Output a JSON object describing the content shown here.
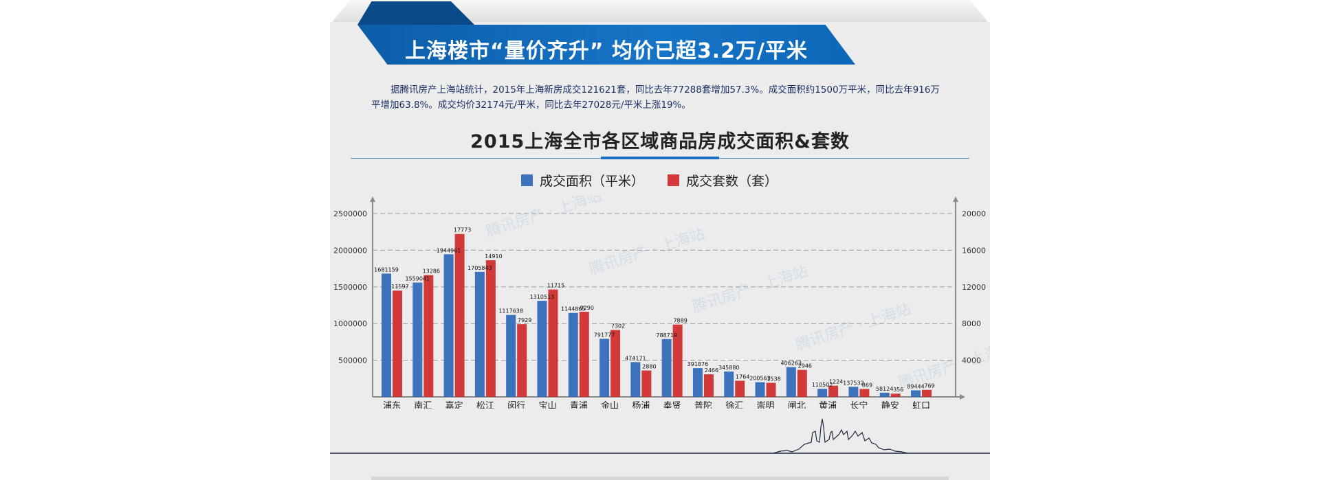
{
  "header": {
    "banner_title": "上海楼市“量价齐升” 均价已超3.2万/平米",
    "intro": "据腾讯房产上海站统计，2015年上海新房成交121621套，同比去年77288套增加57.3%。成交面积约1500万平米，同比去年916万平增加63.8%。成交均价32174元/平米，同比去年27028元/平米上涨19%。"
  },
  "watermark": "腾讯房产 · 上海站",
  "colors": {
    "area": "#3d72bd",
    "count": "#d23a3a",
    "banner": "#1674c6"
  },
  "chart_data": {
    "type": "bar",
    "title": "2015上海全市各区域商品房成交面积&套数",
    "categories": [
      "浦东",
      "南汇",
      "嘉定",
      "松江",
      "闵行",
      "宝山",
      "青浦",
      "金山",
      "杨浦",
      "奉贤",
      "普陀",
      "徐汇",
      "崇明",
      "闸北",
      "黄浦",
      "长宁",
      "静安",
      "虹口"
    ],
    "series": [
      {
        "name": "成交面积（平米）",
        "axis": "left",
        "values": [
          1681159,
          1559041,
          1944961,
          1705843,
          1117638,
          1310513,
          1144865,
          791777,
          474171,
          788719,
          391876,
          345880,
          200563,
          406263,
          110502,
          137532,
          58124,
          89444
        ],
        "labels": [
          "1681159",
          "1559041",
          "1944961",
          "1705843",
          "1117638",
          "1310513",
          "1144865",
          "791777",
          "474171",
          "788719",
          "391876",
          "345880",
          "200563",
          "406263",
          "110502",
          "137532",
          "58124",
          "89444"
        ]
      },
      {
        "name": "成交套数（套）",
        "axis": "right",
        "values": [
          11597,
          13286,
          17773,
          14910,
          7929,
          11715,
          9290,
          7302,
          2880,
          7889,
          2466,
          1764,
          1538,
          2946,
          1224,
          869,
          356,
          769
        ],
        "labels": [
          "11597",
          "13286",
          "17773",
          "14910",
          "7929",
          "11715",
          "9290",
          "7302",
          "2880",
          "7889",
          "2466",
          "1764",
          "1538",
          "2946",
          "1224",
          "869",
          "356",
          "769"
        ]
      }
    ],
    "left_axis": {
      "ylim": [
        0,
        2650000
      ],
      "ticks": [
        500000,
        1000000,
        1500000,
        2000000,
        2500000
      ],
      "tick_labels": [
        "500000",
        "1000000",
        "1500000",
        "2000000",
        "2500000"
      ]
    },
    "right_axis": {
      "ylim": [
        0,
        21200
      ],
      "ticks": [
        4000,
        8000,
        12000,
        16000,
        20000
      ],
      "tick_labels": [
        "4000",
        "8000",
        "12000",
        "16000",
        "20000"
      ]
    },
    "grid": true,
    "legend": "top-center"
  }
}
